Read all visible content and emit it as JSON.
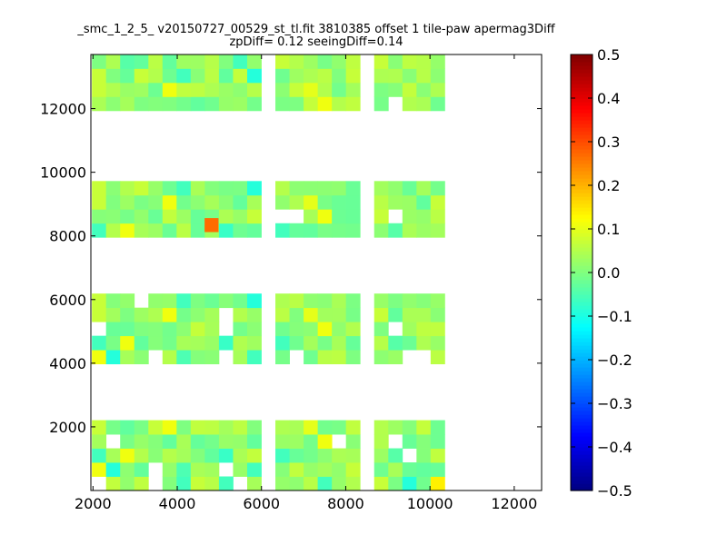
{
  "chart_data": {
    "type": "heatmap",
    "title_lines": [
      "_smc_1_2_5_ v20150727_00529_st_tl.fit 3810385 offset 1 tile-paw apermag3Diff",
      "zpDiff= 0.12 seeingDiff=0.14"
    ],
    "xlim": [
      1950,
      12650
    ],
    "ylim": [
      0,
      13700
    ],
    "x_ticks": [
      2000,
      4000,
      6000,
      8000,
      10000,
      12000
    ],
    "y_ticks": [
      2000,
      4000,
      6000,
      8000,
      10000,
      12000
    ],
    "colorbar": {
      "colormap": "jet",
      "range": [
        -0.5,
        0.5
      ],
      "ticks": [
        "0.5",
        "0.4",
        "0.3",
        "0.2",
        "0.1",
        "0.0",
        "−0.1",
        "−0.2",
        "−0.3",
        "−0.4",
        "−0.5"
      ]
    },
    "cell_size": [
      335,
      442
    ],
    "x_origin": 1975,
    "y_origin": 0,
    "x_column_ranges": [
      [
        0,
        5
      ],
      [
        6,
        11
      ],
      [
        13,
        18
      ],
      [
        20,
        24
      ]
    ],
    "y_row_ranges": [
      [
        0,
        4
      ],
      [
        9,
        13
      ],
      [
        18,
        21
      ],
      [
        27,
        30
      ]
    ],
    "cells": [
      "9...8.0..0......0...8.1.2.00",
      "91.. .3.. .0.............3...",
      "0.9......6...0.......5......",
      "................9.... ...5..",
      "8....9.........7..............",
      "8..8..0....1...............",
      "..5.......0..8.............6",
      ".....6..0.........9.........."
    ]
  }
}
